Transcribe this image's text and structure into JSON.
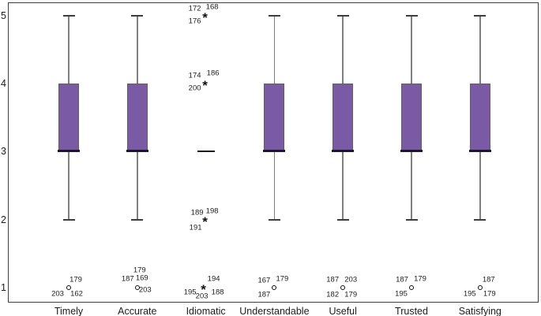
{
  "chart_data": {
    "type": "boxplot",
    "title": "",
    "xlabel": "",
    "ylabel": "",
    "ylim": [
      1,
      5
    ],
    "y_ticks": [
      "1",
      "2",
      "3",
      "4",
      "5"
    ],
    "grid": false,
    "legend_position": "none",
    "categories": [
      "Timely",
      "Accurate",
      "Idiomatic",
      "Understandable",
      "Useful",
      "Trusted",
      "Satisfying"
    ],
    "colors": {
      "box_fill": "#7a5aa5",
      "box_border": "#5f5f5f",
      "median": "#1e1630",
      "whisker": "#808080",
      "whisker_cap": "#3d3d3d",
      "frame": "#3f3f3f",
      "text": "#1c1c1c",
      "background": "#ffffff"
    },
    "series": [
      {
        "category": "Timely",
        "q1": 3,
        "median": 3,
        "q3": 4,
        "whisker_low": 2,
        "whisker_high": 5,
        "outliers": [
          {
            "value": 1,
            "marker": "circle",
            "dx": 0,
            "labels": [
              {
                "text": "179",
                "dx": 9,
                "dy": -10
              },
              {
                "text": "203",
                "dx": -14,
                "dy": 8
              },
              {
                "text": "162",
                "dx": 10,
                "dy": 8
              }
            ]
          }
        ]
      },
      {
        "category": "Accurate",
        "q1": 3,
        "median": 3,
        "q3": 4,
        "whisker_low": 2,
        "whisker_high": 5,
        "outliers": [
          {
            "value": 1,
            "marker": "circle",
            "dx": 0,
            "labels": [
              {
                "text": "179",
                "dx": 3,
                "dy": -22
              },
              {
                "text": "187",
                "dx": -12,
                "dy": -11
              },
              {
                "text": "169",
                "dx": 6,
                "dy": -12
              },
              {
                "text": "203",
                "dx": 10,
                "dy": 3
              }
            ]
          }
        ]
      },
      {
        "category": "Idiomatic",
        "q1": null,
        "median": 3,
        "q3": null,
        "whisker_low": null,
        "whisker_high": null,
        "outliers": [
          {
            "value": 5,
            "marker": "asterisk",
            "dx": -1,
            "labels": [
              {
                "text": "172",
                "dx": -13,
                "dy": -9
              },
              {
                "text": "168",
                "dx": 9,
                "dy": -11
              },
              {
                "text": "176",
                "dx": -13,
                "dy": 7
              }
            ]
          },
          {
            "value": 4,
            "marker": "asterisk",
            "dx": -1,
            "labels": [
              {
                "text": "174",
                "dx": -13,
                "dy": -10
              },
              {
                "text": "186",
                "dx": 10,
                "dy": -13
              },
              {
                "text": "200",
                "dx": -13,
                "dy": 6
              }
            ]
          },
          {
            "value": 2,
            "marker": "asterisk",
            "dx": -1,
            "labels": [
              {
                "text": "189",
                "dx": -10,
                "dy": -9
              },
              {
                "text": "198",
                "dx": 9,
                "dy": -11
              },
              {
                "text": "191",
                "dx": -12,
                "dy": 10
              }
            ]
          },
          {
            "value": 1,
            "marker": "asterisk",
            "dx": -3,
            "labels": [
              {
                "text": "194",
                "dx": 13,
                "dy": -11
              },
              {
                "text": "195",
                "dx": -17,
                "dy": 6
              },
              {
                "text": "203",
                "dx": -2,
                "dy": 11
              },
              {
                "text": "188",
                "dx": 18,
                "dy": 6
              }
            ]
          }
        ]
      },
      {
        "category": "Understandable",
        "q1": 3,
        "median": 3,
        "q3": 4,
        "whisker_low": 2,
        "whisker_high": 5,
        "outliers": [
          {
            "value": 1,
            "marker": "circle",
            "dx": 0,
            "labels": [
              {
                "text": "167",
                "dx": -13,
                "dy": -9
              },
              {
                "text": "179",
                "dx": 10,
                "dy": -11
              },
              {
                "text": "187",
                "dx": -13,
                "dy": 9
              }
            ]
          }
        ]
      },
      {
        "category": "Useful",
        "q1": 3,
        "median": 3,
        "q3": 4,
        "whisker_low": 2,
        "whisker_high": 5,
        "outliers": [
          {
            "value": 1,
            "marker": "circle",
            "dx": 0,
            "labels": [
              {
                "text": "187",
                "dx": -13,
                "dy": -10
              },
              {
                "text": "203",
                "dx": 10,
                "dy": -10
              },
              {
                "text": "182",
                "dx": -13,
                "dy": 9
              },
              {
                "text": "179",
                "dx": 10,
                "dy": 9
              }
            ]
          }
        ]
      },
      {
        "category": "Trusted",
        "q1": 3,
        "median": 3,
        "q3": 4,
        "whisker_low": 2,
        "whisker_high": 5,
        "outliers": [
          {
            "value": 1,
            "marker": "circle",
            "dx": 0,
            "labels": [
              {
                "text": "187",
                "dx": -12,
                "dy": -10
              },
              {
                "text": "179",
                "dx": 11,
                "dy": -11
              },
              {
                "text": "195",
                "dx": -13,
                "dy": 8
              }
            ]
          }
        ]
      },
      {
        "category": "Satisfying",
        "q1": 3,
        "median": 3,
        "q3": 4,
        "whisker_low": 2,
        "whisker_high": 5,
        "outliers": [
          {
            "value": 1,
            "marker": "circle",
            "dx": 0,
            "labels": [
              {
                "text": "187",
                "dx": 11,
                "dy": -10
              },
              {
                "text": "195",
                "dx": -13,
                "dy": 8
              },
              {
                "text": "179",
                "dx": 12,
                "dy": 8
              }
            ]
          }
        ]
      }
    ]
  }
}
